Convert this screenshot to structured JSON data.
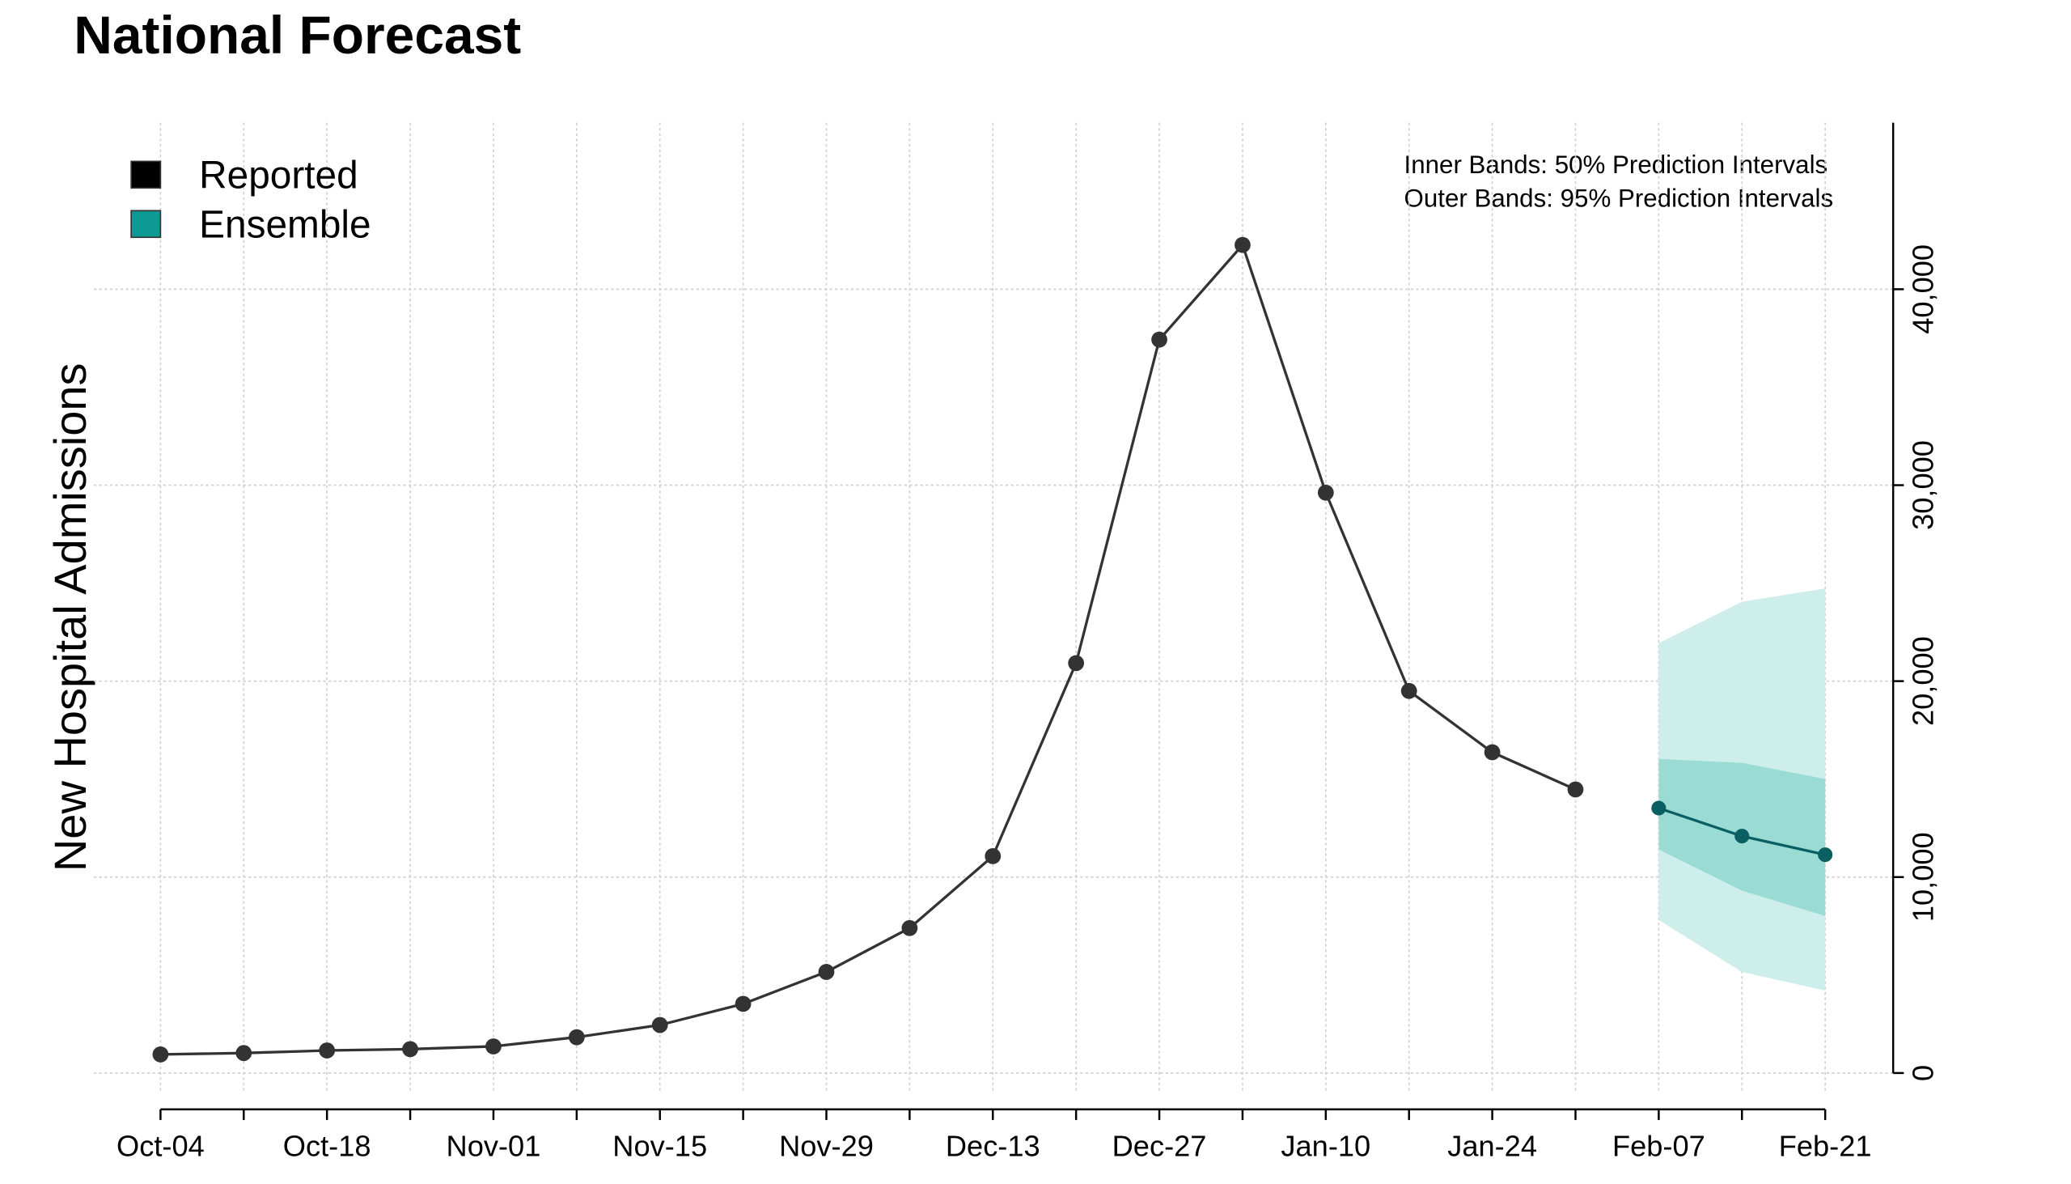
{
  "chart_data": {
    "type": "line",
    "title": "National Forecast",
    "y_label": "New Hospital Admissions",
    "annotations": [
      "Inner Bands: 50% Prediction Intervals",
      "Outer Bands: 95% Prediction Intervals"
    ],
    "categories": [
      "Oct-04",
      null,
      "Oct-18",
      null,
      "Nov-01",
      null,
      "Nov-15",
      null,
      "Nov-29",
      null,
      "Dec-13",
      null,
      "Dec-27",
      null,
      "Jan-10",
      null,
      "Jan-24",
      null,
      "Feb-07",
      null,
      "Feb-21"
    ],
    "series": [
      {
        "name": "Reported",
        "color": "#000000",
        "line_color": "#333333",
        "values": [
          950,
          1020,
          1150,
          1220,
          1360,
          1830,
          2450,
          3530,
          5160,
          7400,
          11070,
          20920,
          37430,
          42260,
          29620,
          19500,
          16370,
          14470,
          null,
          null,
          null
        ]
      },
      {
        "name": "Ensemble",
        "color": "#0e9a94",
        "line_color": "#0a5f63",
        "inner_band_color": "#9adcd4",
        "outer_band_color": "#cdeeea",
        "values": [
          null,
          null,
          null,
          null,
          null,
          null,
          null,
          null,
          null,
          null,
          null,
          null,
          null,
          null,
          null,
          null,
          null,
          null,
          13520,
          12090,
          11140
        ],
        "lower50": [
          null,
          null,
          null,
          null,
          null,
          null,
          null,
          null,
          null,
          null,
          null,
          null,
          null,
          null,
          null,
          null,
          null,
          null,
          11410,
          9310,
          8020
        ],
        "upper50": [
          null,
          null,
          null,
          null,
          null,
          null,
          null,
          null,
          null,
          null,
          null,
          null,
          null,
          null,
          null,
          null,
          null,
          null,
          16030,
          15830,
          15010
        ],
        "lower95": [
          null,
          null,
          null,
          null,
          null,
          null,
          null,
          null,
          null,
          null,
          null,
          null,
          null,
          null,
          null,
          null,
          null,
          null,
          7810,
          5160,
          4210
        ],
        "upper95": [
          null,
          null,
          null,
          null,
          null,
          null,
          null,
          null,
          null,
          null,
          null,
          null,
          null,
          null,
          null,
          null,
          null,
          null,
          21940,
          24050,
          24730
        ]
      }
    ],
    "ylim": [
      -900,
      48500
    ],
    "yticks": [
      0,
      {
        "value": 10000,
        "label": "10,000"
      },
      {
        "value": 20000,
        "label": "20,000"
      },
      {
        "value": 30000,
        "label": "30,000"
      },
      {
        "value": 40000,
        "label": "40,000"
      }
    ],
    "grid": true,
    "legend": "top-left"
  }
}
